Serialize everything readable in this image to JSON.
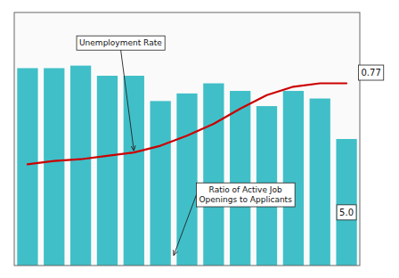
{
  "chart_data": {
    "type": "bar",
    "categories": [
      null,
      null,
      null,
      null,
      null,
      null,
      null,
      null,
      null,
      null,
      null,
      null,
      null
    ],
    "series": [
      {
        "type": "bar",
        "color": "#40BFC8",
        "values": [
          7.8,
          7.8,
          7.9,
          7.5,
          7.5,
          6.5,
          6.8,
          7.2,
          6.9,
          6.3,
          6.9,
          6.6,
          5.0
        ]
      },
      {
        "type": "line",
        "axis": "y2",
        "color": "#CC0000",
        "values": [
          3.0,
          3.1,
          3.15,
          3.25,
          3.35,
          3.55,
          3.85,
          4.2,
          4.65,
          5.05,
          5.3,
          5.4,
          5.4
        ]
      }
    ],
    "ylim": [
      0,
      10
    ],
    "y2lim": [
      0,
      7.5
    ],
    "tick_labels": false,
    "grid": false,
    "annotations": [
      "Unemployment Rate",
      "Ratio of Active Job\nOpenings to Applicants",
      "0.77",
      "5.0"
    ]
  }
}
